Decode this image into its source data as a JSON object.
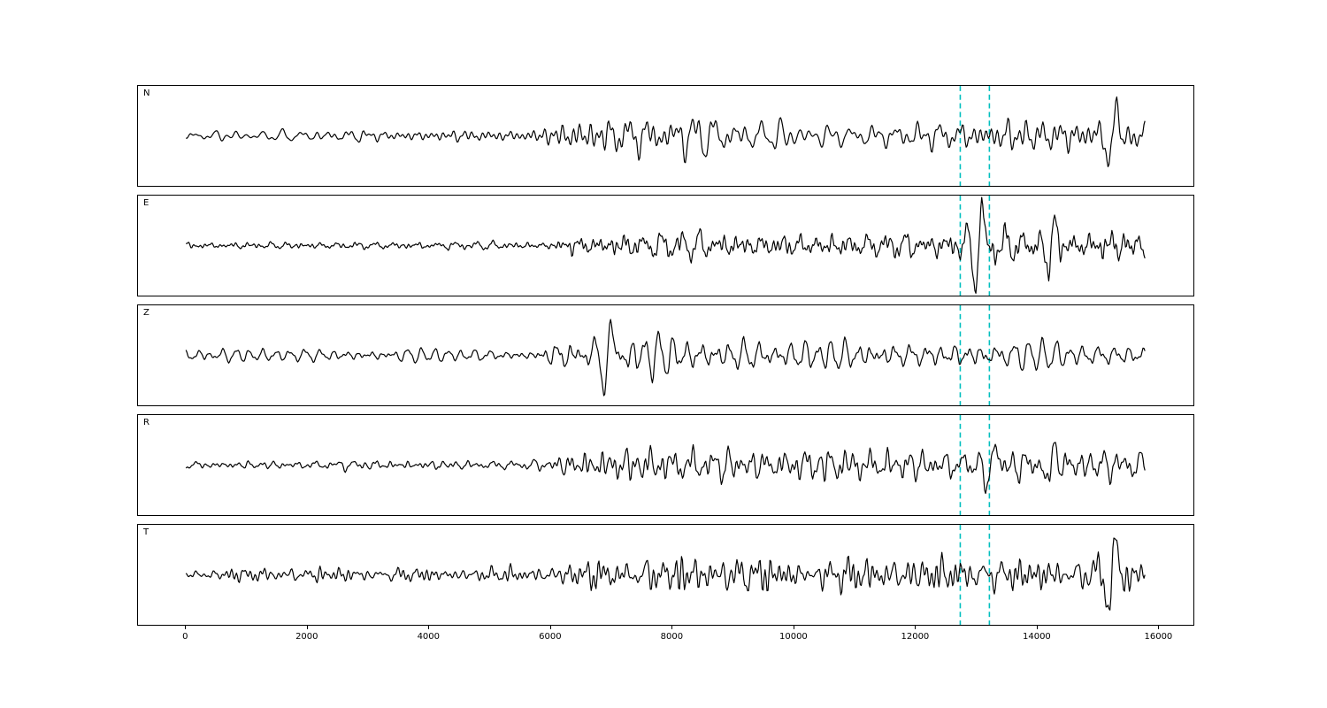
{
  "chart_data": {
    "type": "line",
    "title": "",
    "xlabel": "",
    "ylabel": "",
    "grid": false,
    "legend": null,
    "xlim": [
      -790,
      16590
    ],
    "x_ticks": [
      0,
      2000,
      4000,
      6000,
      8000,
      10000,
      12000,
      14000,
      16000
    ],
    "x_range": [
      0,
      15800
    ],
    "sample_step": 16,
    "line_color": "#000000",
    "marker_lines": {
      "color": "#00bfbf",
      "style": "dashed",
      "x_values": [
        12750,
        13230
      ]
    },
    "panels": [
      {
        "label": "N",
        "seed": 1101,
        "envelope": [
          [
            0,
            0.13
          ],
          [
            5600,
            0.13
          ],
          [
            6400,
            0.34
          ],
          [
            7500,
            0.42
          ],
          [
            9500,
            0.4
          ],
          [
            12000,
            0.3
          ],
          [
            13200,
            0.36
          ],
          [
            15000,
            0.32
          ],
          [
            15800,
            0.3
          ]
        ],
        "pulses": [
          [
            15250,
            1.0,
            180,
            300
          ]
        ]
      },
      {
        "label": "E",
        "seed": 2202,
        "envelope": [
          [
            0,
            0.08
          ],
          [
            5900,
            0.09
          ],
          [
            6400,
            0.24
          ],
          [
            7200,
            0.3
          ],
          [
            12400,
            0.28
          ],
          [
            13000,
            0.38
          ],
          [
            13600,
            0.4
          ],
          [
            14700,
            0.35
          ],
          [
            15600,
            0.4
          ],
          [
            15800,
            0.28
          ]
        ],
        "pulses": [
          [
            13050,
            0.95,
            150,
            280
          ],
          [
            14250,
            0.8,
            120,
            260
          ]
        ]
      },
      {
        "label": "Z",
        "seed": 3303,
        "envelope": [
          [
            0,
            0.16
          ],
          [
            5700,
            0.16
          ],
          [
            6150,
            0.45
          ],
          [
            6600,
            0.38
          ],
          [
            7600,
            0.5
          ],
          [
            8500,
            0.42
          ],
          [
            10000,
            0.38
          ],
          [
            13000,
            0.34
          ],
          [
            15800,
            0.28
          ]
        ],
        "pulses": [
          [
            6950,
            1.0,
            160,
            280
          ]
        ]
      },
      {
        "label": "R",
        "seed": 4404,
        "envelope": [
          [
            0,
            0.1
          ],
          [
            5800,
            0.11
          ],
          [
            6500,
            0.32
          ],
          [
            9000,
            0.4
          ],
          [
            12600,
            0.34
          ],
          [
            13600,
            0.4
          ],
          [
            14800,
            0.4
          ],
          [
            15800,
            0.34
          ]
        ],
        "pulses": [
          [
            13250,
            0.9,
            150,
            280
          ],
          [
            14250,
            0.75,
            120,
            260
          ]
        ]
      },
      {
        "label": "T",
        "seed": 5505,
        "envelope": [
          [
            0,
            0.15
          ],
          [
            5800,
            0.16
          ],
          [
            6500,
            0.32
          ],
          [
            8000,
            0.4
          ],
          [
            12000,
            0.36
          ],
          [
            12900,
            0.4
          ],
          [
            14500,
            0.34
          ],
          [
            15800,
            0.34
          ]
        ],
        "pulses": [
          [
            15250,
            0.95,
            170,
            300
          ]
        ]
      }
    ]
  }
}
